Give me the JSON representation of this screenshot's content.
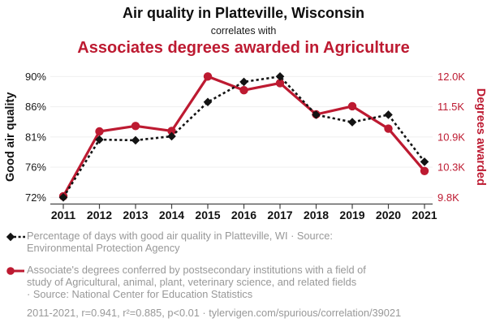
{
  "header": {
    "title": "Air quality in Platteville, Wisconsin",
    "connector": "correlates with",
    "subtitle": "Associates degrees awarded in Agriculture"
  },
  "colors": {
    "accent_red": "#bd1a31",
    "series_black": "#131313",
    "legend_gray": "#989898",
    "gridline": "#f1f1f1",
    "axis": "#444444",
    "tick_label": "#1a1a1a"
  },
  "chart_data": {
    "type": "line",
    "x": [
      2011,
      2012,
      2013,
      2014,
      2015,
      2016,
      2017,
      2018,
      2019,
      2020,
      2021
    ],
    "x_ticks": [
      "2011",
      "2012",
      "2013",
      "2014",
      "2015",
      "2016",
      "2017",
      "2018",
      "2019",
      "2020",
      "2021"
    ],
    "series": [
      {
        "name": "Percentage of days with good air quality in Platteville, WI",
        "axis": "left",
        "style": "dashed-diamond",
        "values": [
          72.0,
          80.6,
          80.5,
          81.1,
          86.2,
          89.2,
          90.0,
          84.3,
          83.2,
          84.3,
          77.3
        ]
      },
      {
        "name": "Associate's degrees conferred in Agricultural and related fields",
        "axis": "right",
        "style": "solid-circle",
        "values": [
          9820,
          11000,
          11100,
          11010,
          12000,
          11750,
          11880,
          11310,
          11460,
          11050,
          10280
        ]
      }
    ],
    "left_axis": {
      "label": "Good air quality",
      "min": 72,
      "max": 90,
      "ticks": [
        {
          "label": "90%",
          "value": 90
        },
        {
          "label": "86%",
          "value": 85.5
        },
        {
          "label": "81%",
          "value": 81
        },
        {
          "label": "76%",
          "value": 76.5
        },
        {
          "label": "72%",
          "value": 72
        }
      ]
    },
    "right_axis": {
      "label": "Degrees awarded",
      "min": 9800,
      "max": 12000,
      "ticks": [
        {
          "label": "12.0K",
          "value": 12000
        },
        {
          "label": "11.5K",
          "value": 11450
        },
        {
          "label": "10.9K",
          "value": 10900
        },
        {
          "label": "10.3K",
          "value": 10350
        },
        {
          "label": "9.8K",
          "value": 9800
        }
      ]
    },
    "grid": "horizontal",
    "legend_position": "bottom"
  },
  "legend": [
    {
      "marker": "black-diamond-dashed",
      "lines": [
        "Percentage of days with good air quality in Platteville, WI · Source:",
        "Environmental Protection Agency"
      ]
    },
    {
      "marker": "red-circle-solid",
      "lines": [
        "Associate's degrees conferred by postsecondary institutions with a field of",
        "study of Agricultural, animal, plant, veterinary science, and related fields",
        "· Source: National Center for Education Statistics"
      ]
    }
  ],
  "footer": {
    "text": "2011-2021, r=0.941, r²=0.885, p<0.01 · tylervigen.com/spurious/correlation/39021"
  }
}
